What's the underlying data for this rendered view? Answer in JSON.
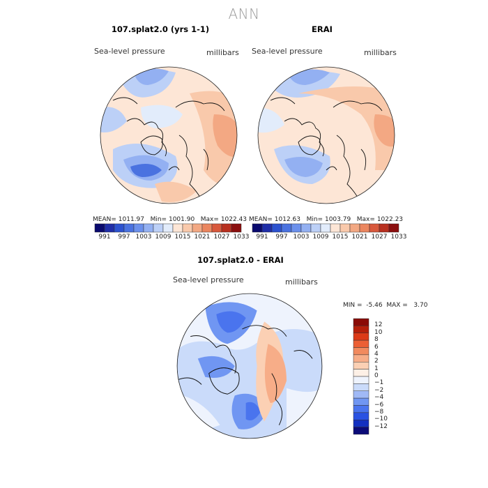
{
  "title": "ANN",
  "panels": [
    {
      "title": "107.splat2.0 (yrs 1-1)",
      "field": "Sea-level pressure",
      "units": "millibars",
      "stats": {
        "mean_label": "MEAN=",
        "mean": "1011.97",
        "min_label": "Min=",
        "min": "1001.90",
        "max_label": "Max=",
        "max": "1022.43"
      }
    },
    {
      "title": "ERAI",
      "field": "Sea-level pressure",
      "units": "millibars",
      "stats": {
        "mean_label": "MEAN=",
        "mean": "1012.63",
        "min_label": "Min=",
        "min": "1003.79",
        "max_label": "Max=",
        "max": "1022.23"
      }
    },
    {
      "title": "107.splat2.0 - ERAI",
      "field": "Sea-level pressure",
      "units": "millibars",
      "stats": {
        "min_label": "MIN =",
        "min": "-5.46",
        "max_label": "MAX =",
        "max": "3.70"
      }
    }
  ],
  "abs_colorbar": {
    "colors": [
      "#0a0a6e",
      "#1f2ea8",
      "#2c52cf",
      "#4a72e0",
      "#6b90ec",
      "#93b0f2",
      "#bcd0f7",
      "#e2ecfb",
      "#fde6d6",
      "#f9c9ab",
      "#f3a883",
      "#eb865f",
      "#d8583c",
      "#b8301f",
      "#8a0d0d"
    ],
    "tick_labels": [
      "991",
      "997",
      "1003",
      "1009",
      "1015",
      "1021",
      "1027",
      "1033"
    ]
  },
  "diff_colorbar": {
    "colors": [
      "#0b0b78",
      "#1330c0",
      "#2a52e2",
      "#4a74ee",
      "#7096f2",
      "#a0b9f6",
      "#cadbfa",
      "#eef3fd",
      "#fdf0e6",
      "#fbd0b4",
      "#f7ad88",
      "#f28a5e",
      "#ec5f34",
      "#dc3a17",
      "#b51f0a",
      "#8a0b06"
    ],
    "tick_labels": [
      "12",
      "10",
      "8",
      "6",
      "4",
      "2",
      "1",
      "0",
      "−1",
      "−2",
      "−4",
      "−6",
      "−8",
      "−10",
      "−12"
    ]
  }
}
